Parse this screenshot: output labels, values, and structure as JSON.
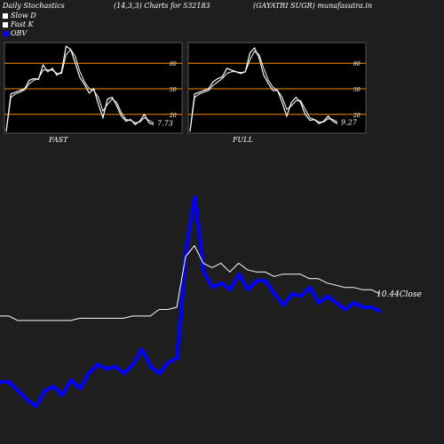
{
  "header": {
    "title": "Daily Stochastics",
    "params": "(14,3,3) Charts for 532183",
    "symbol": "(GAYATRI SUGR) munafasutra.in"
  },
  "legend": [
    {
      "label": "Slow  D",
      "color": "#ffffff"
    },
    {
      "label": "Fast K",
      "color": "#ffffff"
    },
    {
      "label": "OBV",
      "color": "#0000ff"
    }
  ],
  "colors": {
    "background": "#1e1e1e",
    "panel_bg": "#000000",
    "level_line": "#ff8c00",
    "stoch_line": "#ffffff",
    "obv_line": "#0000ff",
    "price_line": "#ffffff"
  },
  "chart_data": [
    {
      "type": "line",
      "title": "FAST",
      "ylim": [
        0,
        100
      ],
      "yticks": [
        20,
        50,
        80
      ],
      "levels": [
        20,
        50,
        80
      ],
      "last_value_label": "7.73",
      "series": [
        {
          "name": "Fast K",
          "values": [
            0,
            44,
            46,
            48,
            50,
            60,
            62,
            61,
            78,
            70,
            74,
            66,
            70,
            100,
            96,
            80,
            63,
            55,
            45,
            50,
            32,
            16,
            38,
            40,
            30,
            18,
            12,
            14,
            8,
            12,
            20,
            10,
            8
          ]
        },
        {
          "name": "Slow  D",
          "values": [
            0,
            40,
            44,
            46,
            49,
            56,
            60,
            62,
            72,
            72,
            72,
            68,
            68,
            90,
            96,
            88,
            70,
            58,
            50,
            48,
            40,
            24,
            32,
            38,
            34,
            22,
            14,
            13,
            10,
            11,
            16,
            13,
            10
          ]
        }
      ]
    },
    {
      "type": "line",
      "title": "FULL",
      "ylim": [
        0,
        100
      ],
      "yticks": [
        20,
        50,
        80
      ],
      "levels": [
        20,
        50,
        80
      ],
      "last_value_label": "9.27",
      "series": [
        {
          "name": "Fast K",
          "values": [
            0,
            44,
            46,
            48,
            50,
            58,
            62,
            64,
            74,
            72,
            70,
            68,
            70,
            92,
            98,
            86,
            66,
            56,
            48,
            48,
            34,
            18,
            34,
            40,
            34,
            20,
            13,
            14,
            9,
            12,
            18,
            12,
            9
          ]
        },
        {
          "name": "Slow  D",
          "values": [
            0,
            40,
            44,
            46,
            48,
            54,
            58,
            62,
            68,
            70,
            70,
            69,
            70,
            84,
            94,
            90,
            74,
            60,
            52,
            48,
            40,
            26,
            30,
            36,
            36,
            26,
            16,
            14,
            11,
            11,
            15,
            14,
            11
          ]
        }
      ]
    },
    {
      "type": "line",
      "title": "",
      "last_value_label": "10.44",
      "last_value_suffix": "Close",
      "ylim": [
        0,
        100
      ],
      "series": [
        {
          "name": "OBV",
          "values": [
            16,
            16,
            12,
            8,
            5,
            12,
            14,
            10,
            17,
            13,
            20,
            24,
            22,
            23,
            20,
            24,
            31,
            23,
            20,
            25,
            27,
            76,
            100,
            66,
            59,
            61,
            58,
            65,
            58,
            62,
            62,
            56,
            51,
            56,
            55,
            59,
            52,
            55,
            52,
            49,
            52,
            50,
            50,
            48
          ]
        },
        {
          "name": "Close",
          "values": [
            46,
            46,
            44,
            44,
            44,
            44,
            44,
            44,
            44,
            45,
            45,
            45,
            45,
            45,
            45,
            46,
            46,
            46,
            49,
            49,
            50,
            73,
            78,
            70,
            68,
            70,
            66,
            70,
            67,
            66,
            66,
            64,
            65,
            65,
            65,
            63,
            63,
            61,
            60,
            59,
            59,
            58,
            58,
            56
          ]
        }
      ]
    }
  ]
}
